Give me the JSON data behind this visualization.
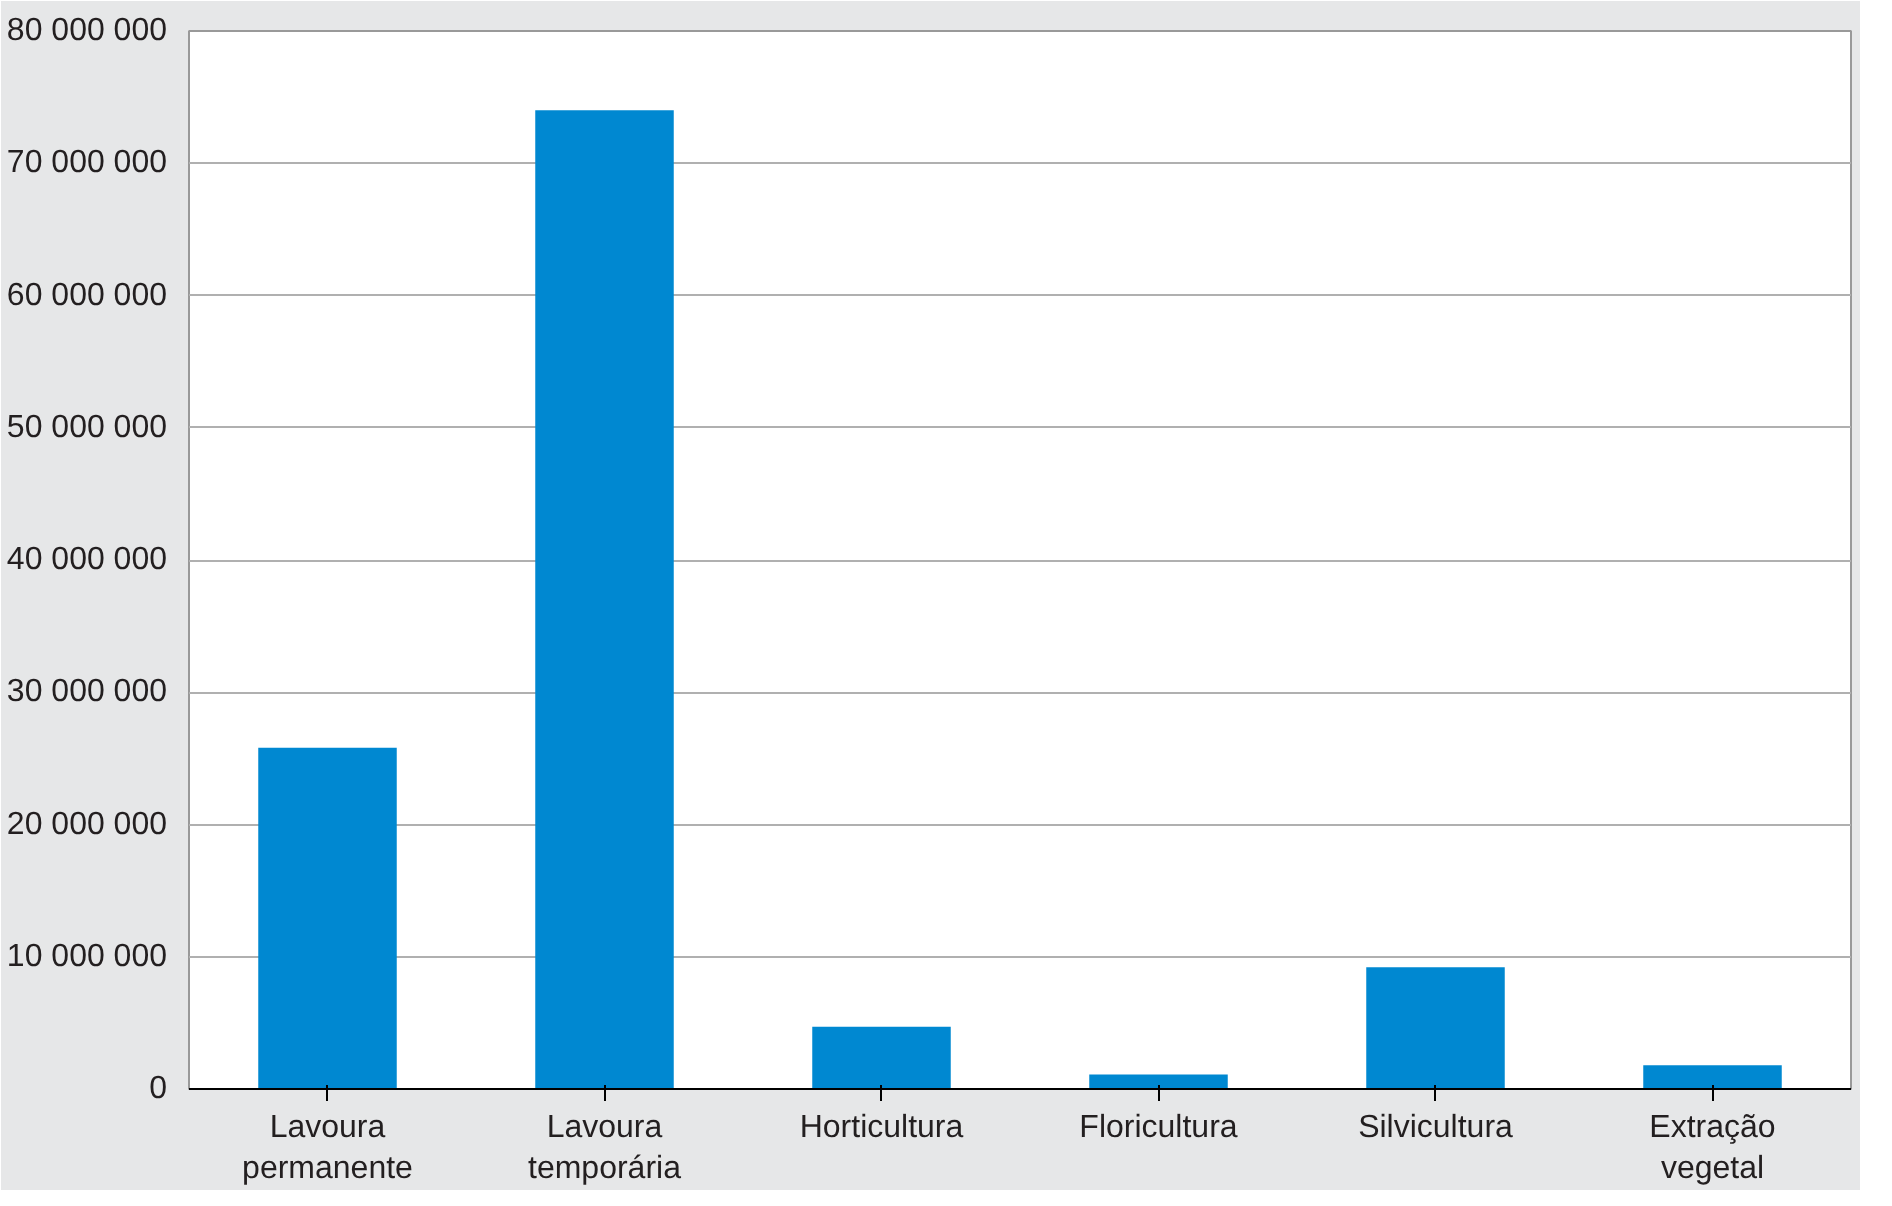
{
  "chart_data": {
    "type": "bar",
    "categories": [
      "Lavoura\npermanente",
      "Lavoura\ntemporária",
      "Horticultura",
      "Floricultura",
      "Silvicultura",
      "Extração\nvegetal"
    ],
    "values": [
      25800000,
      74000000,
      4700000,
      1100000,
      9200000,
      1800000
    ],
    "color": "#0088d1",
    "ylim": [
      0,
      80000000
    ],
    "yticks": [
      0,
      {
        "value": 10000000,
        "label": "10 000 000"
      },
      {
        "value": 20000000,
        "label": "20 000 000"
      },
      {
        "value": 30000000,
        "label": "30 000 000"
      },
      {
        "value": 40000000,
        "label": "40 000 000"
      },
      {
        "value": 50000000,
        "label": "50 000 000"
      },
      {
        "value": 60000000,
        "label": "60 000 000"
      },
      {
        "value": 70000000,
        "label": "70 000 000"
      },
      {
        "value": 80000000,
        "label": "80 000 000"
      }
    ],
    "grid": "y"
  }
}
